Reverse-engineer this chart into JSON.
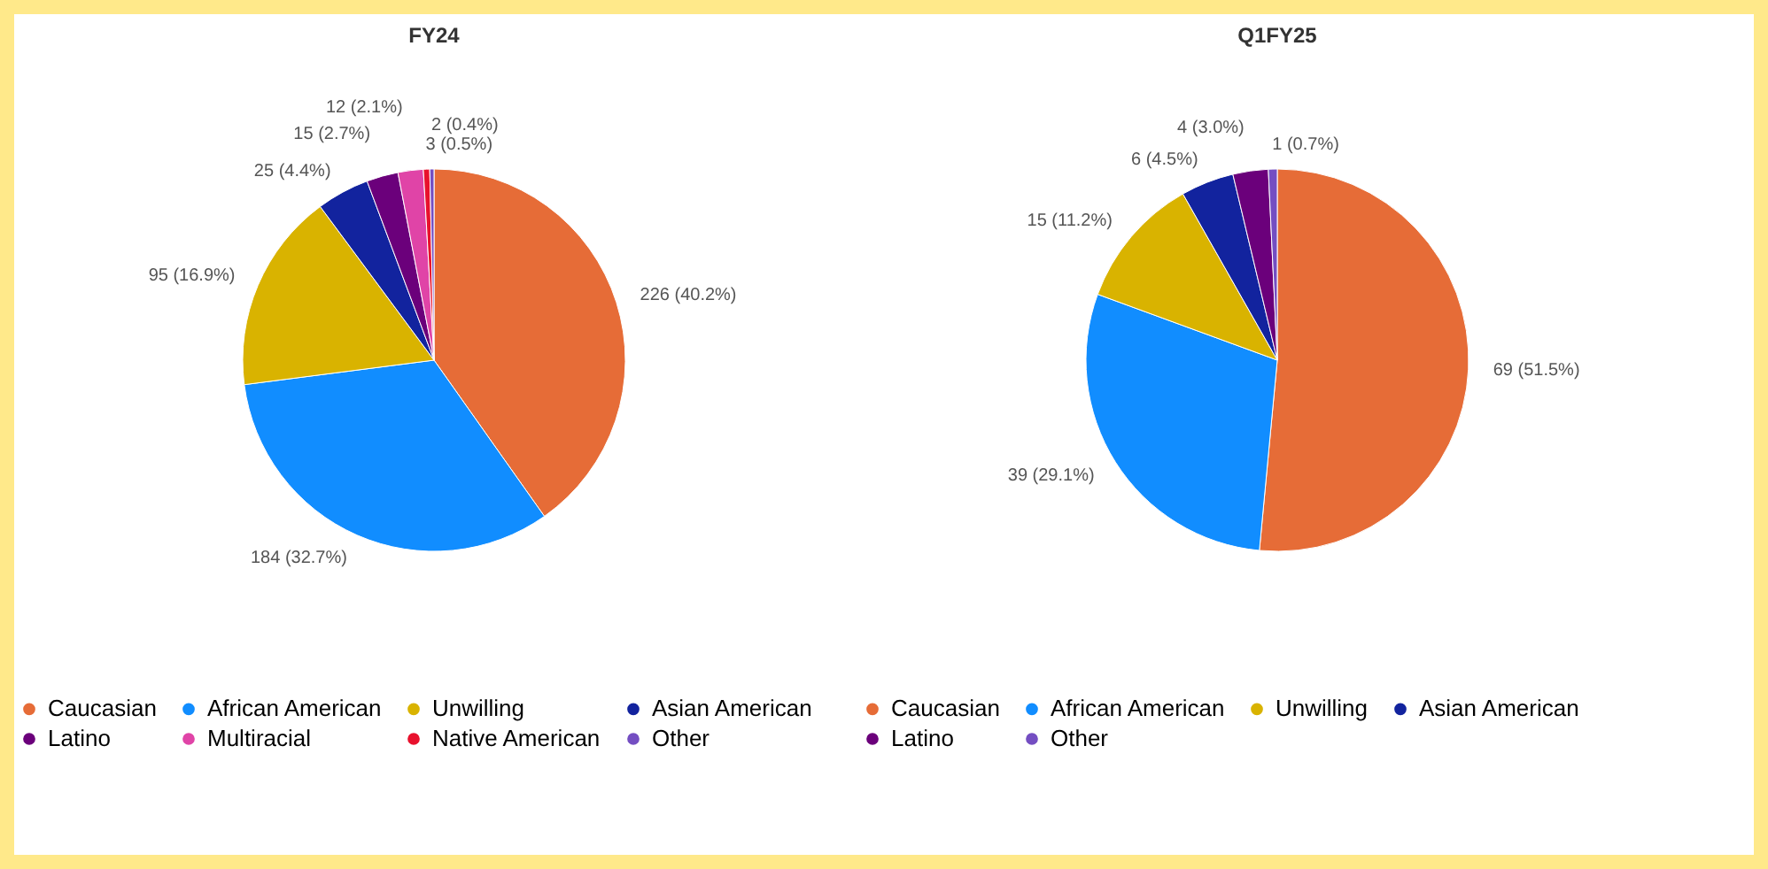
{
  "chart_data": [
    {
      "type": "pie",
      "title": "FY24",
      "legend": "bottom",
      "categories": [
        "Caucasian",
        "African American",
        "Unwilling",
        "Asian American",
        "Latino",
        "Multiracial",
        "Native American",
        "Other"
      ],
      "values": [
        226,
        184,
        95,
        25,
        15,
        12,
        3,
        2
      ],
      "colors": [
        "#e66c37",
        "#118dff",
        "#d9b300",
        "#12239e",
        "#6b007b",
        "#e044a7",
        "#e8112d",
        "#744ec2"
      ],
      "value_labels": [
        "226 (40.2%)",
        "184 (32.7%)",
        "95 (16.9%)",
        "25 (4.4%)",
        "15 (2.7%)",
        "12 (2.1%)",
        "3 (0.5%)",
        "2 (0.4%)"
      ]
    },
    {
      "type": "pie",
      "title": "Q1FY25",
      "legend": "bottom",
      "categories": [
        "Caucasian",
        "African American",
        "Unwilling",
        "Asian American",
        "Latino",
        "Other"
      ],
      "values": [
        69,
        39,
        15,
        6,
        4,
        1
      ],
      "colors": [
        "#e66c37",
        "#118dff",
        "#d9b300",
        "#12239e",
        "#6b007b",
        "#744ec2"
      ],
      "value_labels": [
        "69 (51.5%)",
        "39 (29.1%)",
        "15 (11.2%)",
        "6 (4.5%)",
        "4 (3.0%)",
        "1 (0.7%)"
      ]
    }
  ]
}
